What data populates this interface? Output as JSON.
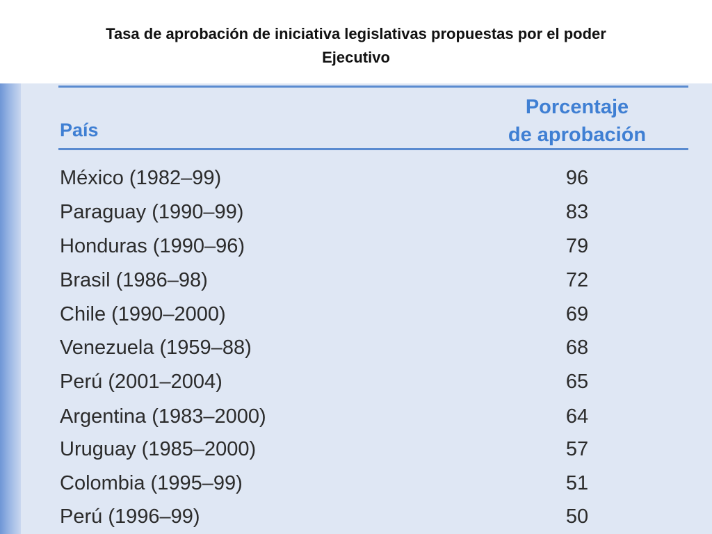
{
  "title": {
    "line1": "Tasa de aprobación de iniciativa legislativas propuestas por el poder",
    "line2": "Ejecutivo"
  },
  "table": {
    "header_country": "País",
    "header_pct_line1": "Porcentaje",
    "header_pct_line2": "de aprobación",
    "rows": [
      {
        "country": "México (1982–99)",
        "value": "96"
      },
      {
        "country": "Paraguay (1990–99)",
        "value": "83"
      },
      {
        "country": "Honduras (1990–96)",
        "value": "79"
      },
      {
        "country": "Brasil (1986–98)",
        "value": "72"
      },
      {
        "country": "Chile (1990–2000)",
        "value": "69"
      },
      {
        "country": "Venezuela (1959–88)",
        "value": "68"
      },
      {
        "country": "Perú (2001–2004)",
        "value": "65"
      },
      {
        "country": "Argentina (1983–2000)",
        "value": "64"
      },
      {
        "country": "Uruguay (1985–2000)",
        "value": "57"
      },
      {
        "country": "Colombia (1995–99)",
        "value": "51"
      },
      {
        "country": "Perú (1996–99)",
        "value": "50"
      }
    ]
  },
  "colors": {
    "header_text": "#3f7fd3",
    "panel_bg": "#dfe7f4",
    "rule": "#5a8bd0"
  }
}
